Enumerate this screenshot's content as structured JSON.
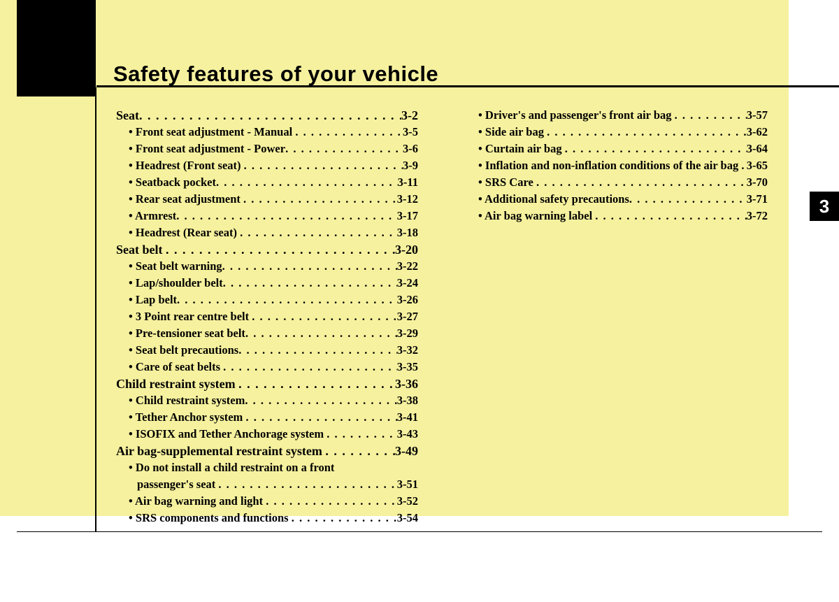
{
  "chapterTitle": "Safety features of your vehicle",
  "chapterTab": "3",
  "colors": {
    "pageBackground": "#f6f19e",
    "blockBackground": "#000000",
    "text": "#000000",
    "tabText": "#ffffff"
  },
  "typography": {
    "titleFontFamily": "Helvetica",
    "titleFontSize": 31,
    "titleFontWeight": 700,
    "bodyFontFamily": "Times New Roman",
    "sectionFontSize": 18,
    "subFontSize": 16.5,
    "allBold": true
  },
  "leftColumn": [
    {
      "type": "section",
      "label": "Seat",
      "page": "3-2"
    },
    {
      "type": "sub",
      "label": "Front seat adjustment - Manual ",
      "page": "3-5"
    },
    {
      "type": "sub",
      "label": "Front seat adjustment - Power",
      "page": "3-6"
    },
    {
      "type": "sub",
      "label": "Headrest (Front seat) ",
      "page": "3-9"
    },
    {
      "type": "sub",
      "label": "Seatback pocket",
      "page": "3-11"
    },
    {
      "type": "sub",
      "label": "Rear seat adjustment ",
      "page": "3-12"
    },
    {
      "type": "sub",
      "label": "Armrest",
      "page": "3-17"
    },
    {
      "type": "sub",
      "label": "Headrest (Rear seat) ",
      "page": "3-18"
    },
    {
      "type": "section",
      "label": "Seat belt ",
      "page": "3-20"
    },
    {
      "type": "sub",
      "label": "Seat belt warning",
      "page": "3-22"
    },
    {
      "type": "sub",
      "label": "Lap/shoulder belt",
      "page": "3-24"
    },
    {
      "type": "sub",
      "label": "Lap belt",
      "page": "3-26"
    },
    {
      "type": "sub",
      "label": "3 Point rear centre belt ",
      "page": "3-27"
    },
    {
      "type": "sub",
      "label": "Pre-tensioner seat belt",
      "page": "3-29"
    },
    {
      "type": "sub",
      "label": "Seat belt precautions",
      "page": "3-32"
    },
    {
      "type": "sub",
      "label": "Care of seat belts ",
      "page": "3-35"
    },
    {
      "type": "section",
      "label": "Child restraint system ",
      "page": "3-36"
    },
    {
      "type": "sub",
      "label": "Child restraint system",
      "page": "3-38"
    },
    {
      "type": "sub",
      "label": "Tether Anchor system ",
      "page": "3-41"
    },
    {
      "type": "sub",
      "label": "ISOFIX and Tether Anchorage system ",
      "page": "3-43"
    },
    {
      "type": "section",
      "label": "Air bag-supplemental restraint system ",
      "page": "3-49"
    },
    {
      "type": "sub",
      "label": "Do not install a child restraint on a front",
      "continues": true
    },
    {
      "type": "continuation",
      "label": "passenger's seat ",
      "page": "3-51"
    },
    {
      "type": "sub",
      "label": "Air bag warning and light ",
      "page": "3-52"
    },
    {
      "type": "sub",
      "label": "SRS components and functions ",
      "page": "3-54"
    }
  ],
  "rightColumn": [
    {
      "type": "sub",
      "label": "Driver's and passenger's front air bag ",
      "page": "3-57"
    },
    {
      "type": "sub",
      "label": "Side air bag ",
      "page": "3-62"
    },
    {
      "type": "sub",
      "label": "Curtain air bag ",
      "page": "3-64"
    },
    {
      "type": "sub",
      "label": "Inflation and non-inflation conditions of the air bag ",
      "page": "3-65"
    },
    {
      "type": "sub",
      "label": "SRS Care ",
      "page": "3-70"
    },
    {
      "type": "sub",
      "label": "Additional safety precautions",
      "page": "3-71"
    },
    {
      "type": "sub",
      "label": "Air bag warning label ",
      "page": "3-72"
    }
  ]
}
